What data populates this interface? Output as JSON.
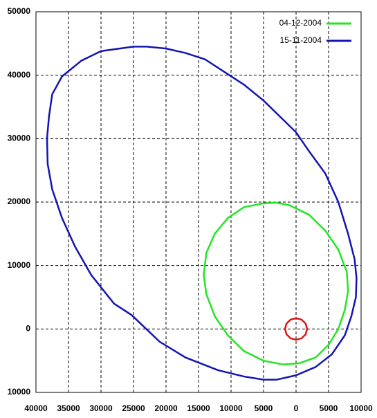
{
  "chart_data": {
    "type": "line",
    "xlim": [
      40000,
      -10000
    ],
    "ylim": [
      -10000,
      50000
    ],
    "xticks": [
      40000,
      35000,
      30000,
      25000,
      20000,
      15000,
      10000,
      5000,
      0,
      {
        "value": -5000,
        "label": "5000"
      },
      {
        "value": -10000,
        "label": "10000"
      }
    ],
    "yticks": [
      {
        "value": -10000,
        "label": "10000"
      },
      0,
      10000,
      20000,
      30000,
      40000,
      50000
    ],
    "grid": true,
    "legend": "upper right",
    "series": [
      {
        "name": "04-12-2004",
        "color": "#22e622",
        "x": [
          5000,
          8000,
          10500,
          12500,
          13800,
          14200,
          13800,
          12500,
          10500,
          8000,
          5000,
          2000,
          -500,
          -3000,
          -5000,
          -6500,
          -7500,
          -8000,
          -7800,
          -6500,
          -4500,
          -2000,
          1000,
          3000,
          5000
        ],
        "y": [
          19800,
          19200,
          17500,
          15000,
          12000,
          8500,
          5500,
          2000,
          -1000,
          -3500,
          -5000,
          -5600,
          -5400,
          -4500,
          -2500,
          0,
          3000,
          6000,
          9000,
          12500,
          15500,
          18000,
          19500,
          19900,
          19800
        ]
      },
      {
        "name": "15-11-2004",
        "color": "#1414b4",
        "x": [
          25000,
          30000,
          33000,
          36000,
          37500,
          38000,
          38300,
          38200,
          37500,
          36000,
          34000,
          31500,
          28000,
          25300,
          21000,
          17000,
          12000,
          8000,
          5000,
          3000,
          0,
          -3000,
          -5500,
          -7500,
          -8500,
          -9200,
          -9300,
          -9000,
          -8000,
          -6500,
          -4500,
          -2000,
          0,
          2500,
          5000,
          8000,
          11000,
          14000,
          17000,
          20000,
          23000,
          25000
        ],
        "y": [
          44500,
          43800,
          42300,
          39800,
          37000,
          33500,
          30000,
          26000,
          22000,
          17500,
          13000,
          8500,
          4000,
          2200,
          -2000,
          -4500,
          -6500,
          -7500,
          -8000,
          -8000,
          -7300,
          -6000,
          -4000,
          -1000,
          2000,
          5000,
          8000,
          11000,
          15000,
          20000,
          24500,
          28000,
          31000,
          33500,
          36000,
          38500,
          40500,
          42500,
          43500,
          44200,
          44500,
          44500
        ]
      },
      {
        "color": "#dc1414",
        "x": [
          1700,
          1470,
          850,
          0,
          -850,
          -1470,
          -1700,
          -1470,
          -850,
          0,
          850,
          1470,
          1700
        ],
        "y": [
          0,
          850,
          1470,
          1700,
          1470,
          850,
          0,
          -850,
          -1470,
          -1700,
          -1470,
          -850,
          0
        ]
      }
    ]
  }
}
